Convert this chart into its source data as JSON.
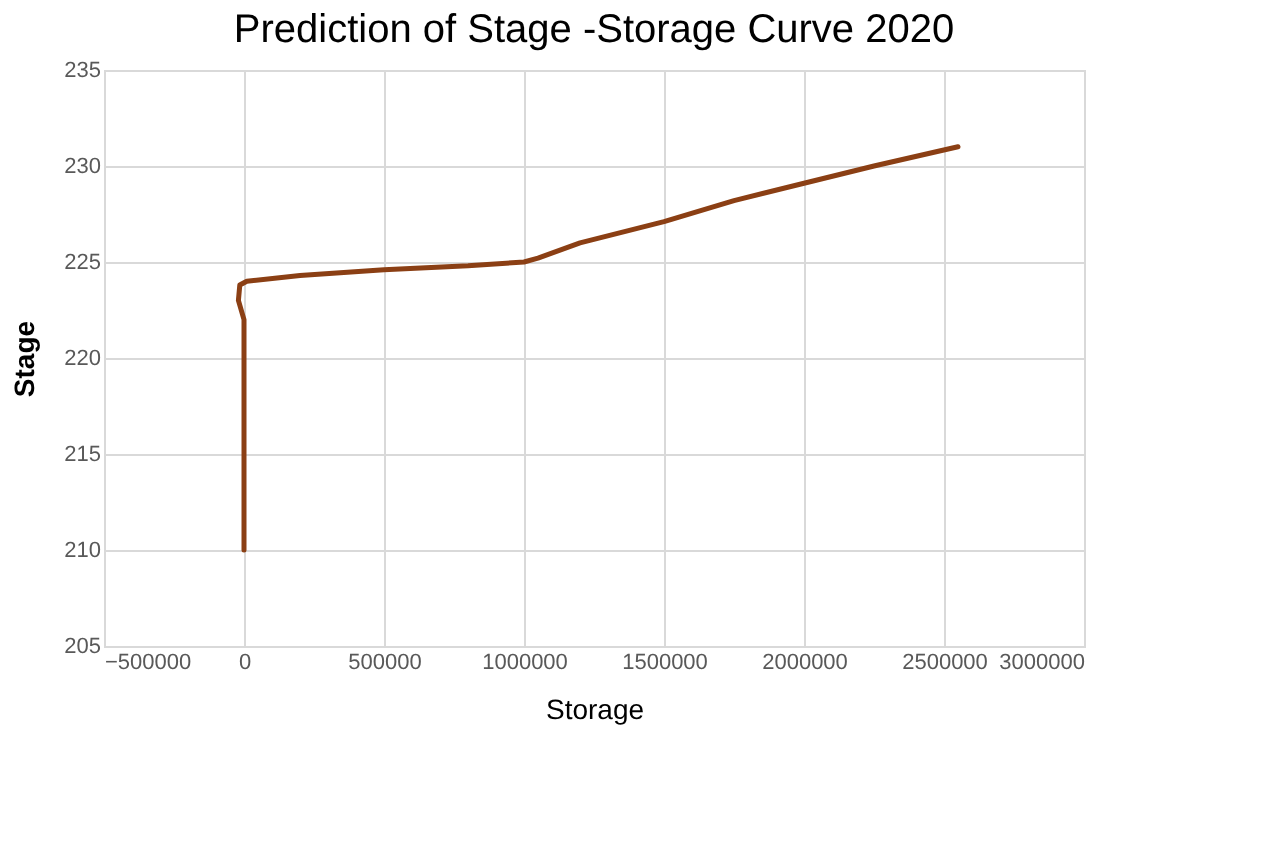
{
  "chart_data": {
    "type": "line",
    "title": "Prediction of Stage -Storage Curve 2020",
    "xlabel": "Storage",
    "ylabel": "Stage",
    "xlim": [
      -500000,
      3000000
    ],
    "xticks": [
      -500000,
      0,
      500000,
      1000000,
      1500000,
      2000000,
      2500000,
      3000000
    ],
    "ylim": [
      205,
      235
    ],
    "yticks": [
      205,
      210,
      215,
      220,
      225,
      230,
      235
    ],
    "grid": true,
    "marker": "none",
    "line_style": "solid",
    "series": [
      {
        "color": "#8b3f14",
        "x": [
          0,
          0,
          -20000,
          -15000,
          10000,
          200000,
          500000,
          800000,
          1000000,
          1050000,
          1200000,
          1500000,
          1750000,
          2000000,
          2250000,
          2550000
        ],
        "values": [
          210,
          222,
          223,
          223.8,
          224,
          224.3,
          224.6,
          224.8,
          225,
          225.2,
          226,
          227.1,
          228.2,
          229.1,
          230,
          231
        ]
      }
    ]
  }
}
